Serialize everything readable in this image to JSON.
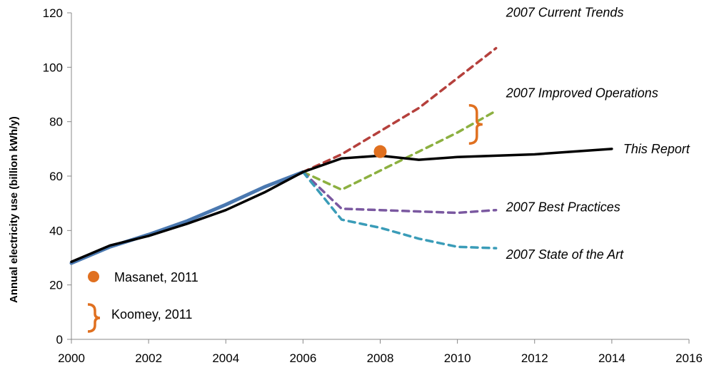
{
  "chart_data": {
    "type": "line",
    "title": "",
    "xlabel": "",
    "ylabel": "Annual electricity use (billion kWh/y)",
    "xlim": [
      2000,
      2016
    ],
    "ylim": [
      0,
      120
    ],
    "xticks": [
      "2000",
      "2002",
      "2004",
      "2006",
      "2008",
      "2010",
      "2012",
      "2014",
      "2016"
    ],
    "yticks": [
      "0",
      "20",
      "40",
      "60",
      "80",
      "100",
      "120"
    ],
    "grid": false,
    "series": [
      {
        "name": "Historical",
        "color": "#4a78b0",
        "dashed": false,
        "labeled": false,
        "x": [
          2000,
          2001,
          2002,
          2003,
          2004,
          2005,
          2006
        ],
        "y": [
          28,
          34,
          38.5,
          43.5,
          49.5,
          56,
          61.5
        ]
      },
      {
        "name": "2007 Current Trends",
        "color": "#b5403c",
        "dashed": true,
        "labeled": true,
        "x": [
          2006,
          2007,
          2008,
          2009,
          2010,
          2011
        ],
        "y": [
          61.5,
          68,
          76.5,
          85,
          96,
          107
        ]
      },
      {
        "name": "2007 Improved Operations",
        "color": "#8cb040",
        "dashed": true,
        "labeled": true,
        "x": [
          2006,
          2007,
          2008,
          2009,
          2010,
          2011
        ],
        "y": [
          61.5,
          55,
          62,
          69,
          76,
          84
        ]
      },
      {
        "name": "2007 Best Practices",
        "color": "#7a58a0",
        "dashed": true,
        "labeled": true,
        "x": [
          2006,
          2007,
          2008,
          2009,
          2010,
          2011
        ],
        "y": [
          61.5,
          48,
          47.5,
          47,
          46.5,
          47.5
        ]
      },
      {
        "name": "2007 State of the Art",
        "color": "#3a9cb8",
        "dashed": true,
        "labeled": true,
        "x": [
          2006,
          2007,
          2008,
          2009,
          2010,
          2011
        ],
        "y": [
          61.5,
          44,
          41,
          37,
          34,
          33.5
        ]
      },
      {
        "name": "This Report",
        "color": "#000000",
        "dashed": false,
        "labeled": true,
        "x": [
          2000,
          2001,
          2002,
          2003,
          2004,
          2005,
          2006,
          2007,
          2008,
          2009,
          2010,
          2011,
          2012,
          2013,
          2014
        ],
        "y": [
          28.5,
          34.5,
          38,
          42.5,
          47.5,
          54,
          61.5,
          66.5,
          67.5,
          66,
          67,
          67.5,
          68,
          69,
          70
        ]
      }
    ],
    "annotations": {
      "masanet": {
        "label": "Masanet, 2011",
        "x": 2008,
        "y": 69,
        "color": "#e07020"
      },
      "koomey": {
        "label": "Koomey, 2011",
        "x": 2010.3,
        "y_range": [
          72,
          86
        ],
        "color": "#e07020"
      }
    }
  }
}
